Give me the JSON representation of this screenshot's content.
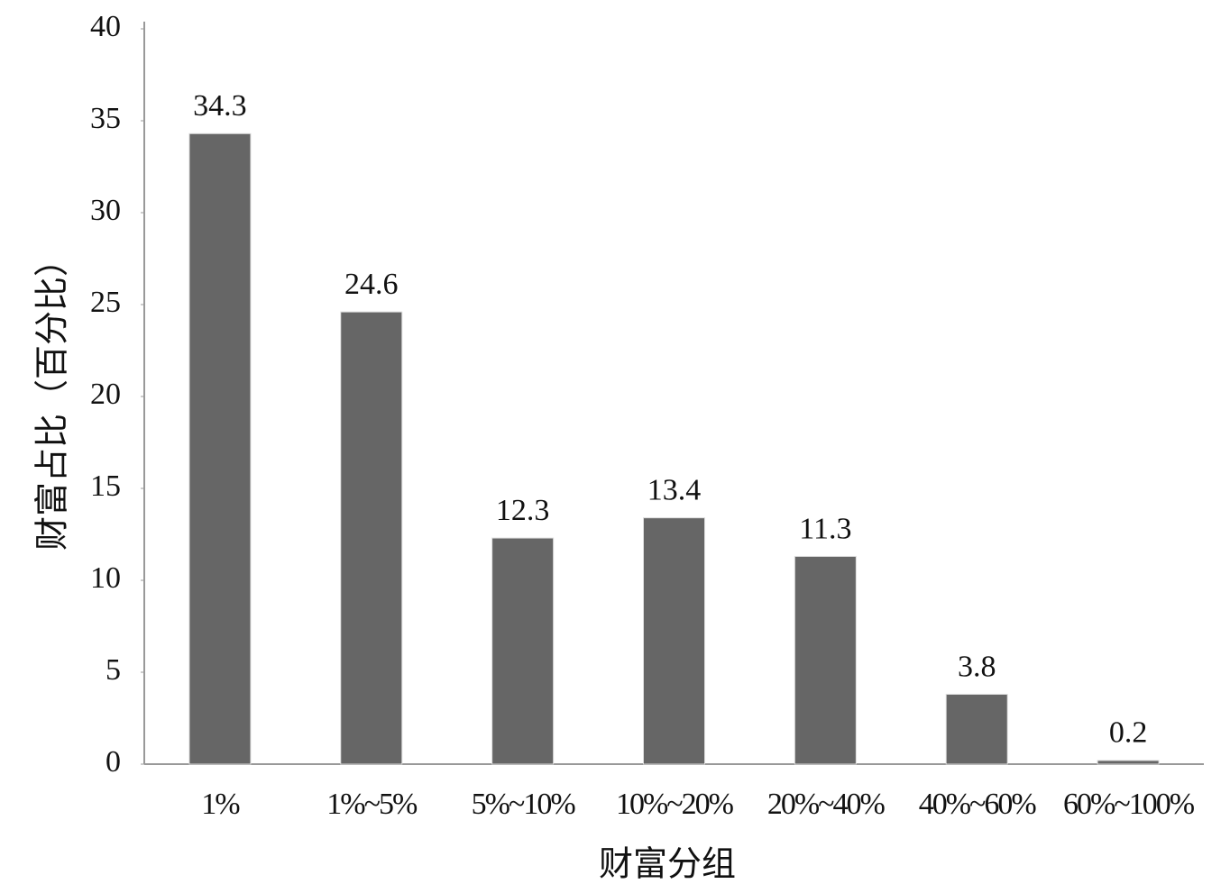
{
  "chart_data": {
    "type": "bar",
    "x_label": "财富分组",
    "y_label": "财富占比（百分比）",
    "categories": [
      "1%",
      "1%~5%",
      "5%~10%",
      "10%~20%",
      "20%~40%",
      "40%~60%",
      "60%~100%"
    ],
    "values": [
      34.3,
      24.6,
      12.3,
      13.4,
      11.3,
      3.8,
      0.2
    ],
    "color": "#666666",
    "ylim": [
      0,
      40
    ],
    "yticks": [
      0,
      5,
      10,
      15,
      20,
      25,
      30,
      35,
      40
    ]
  }
}
